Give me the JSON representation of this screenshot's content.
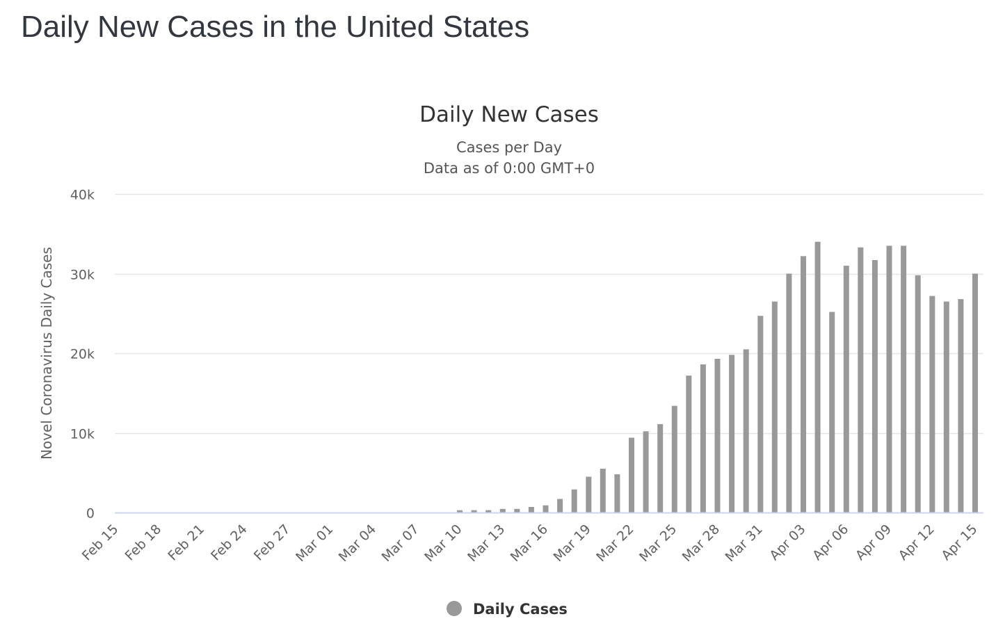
{
  "page": {
    "title": "Daily New Cases in the United States"
  },
  "chart_data": {
    "type": "bar",
    "title": "Daily New Cases",
    "subtitle_lines": [
      "Cases per Day",
      "Data as of 0:00 GMT+0"
    ],
    "xlabel": "",
    "ylabel": "Novel Coronavirus Daily Cases",
    "ylim": [
      0,
      40000
    ],
    "yticks": [
      0,
      10000,
      20000,
      30000,
      40000
    ],
    "ytick_labels": [
      "0",
      "10k",
      "20k",
      "30k",
      "40k"
    ],
    "grid": true,
    "legend": {
      "position": "bottom-center",
      "entries": [
        "Daily Cases"
      ]
    },
    "bar_color": "#999999",
    "categories": [
      "Feb 15",
      "Feb 16",
      "Feb 17",
      "Feb 18",
      "Feb 19",
      "Feb 20",
      "Feb 21",
      "Feb 22",
      "Feb 23",
      "Feb 24",
      "Feb 25",
      "Feb 26",
      "Feb 27",
      "Feb 28",
      "Feb 29",
      "Mar 01",
      "Mar 02",
      "Mar 03",
      "Mar 04",
      "Mar 05",
      "Mar 06",
      "Mar 07",
      "Mar 08",
      "Mar 09",
      "Mar 10",
      "Mar 11",
      "Mar 12",
      "Mar 13",
      "Mar 14",
      "Mar 15",
      "Mar 16",
      "Mar 17",
      "Mar 18",
      "Mar 19",
      "Mar 20",
      "Mar 21",
      "Mar 22",
      "Mar 23",
      "Mar 24",
      "Mar 25",
      "Mar 26",
      "Mar 27",
      "Mar 28",
      "Mar 29",
      "Mar 30",
      "Mar 31",
      "Apr 01",
      "Apr 02",
      "Apr 03",
      "Apr 04",
      "Apr 05",
      "Apr 06",
      "Apr 07",
      "Apr 08",
      "Apr 09",
      "Apr 10",
      "Apr 11",
      "Apr 12",
      "Apr 13",
      "Apr 14",
      "Apr 15"
    ],
    "xtick_labels": [
      "Feb 15",
      "Feb 18",
      "Feb 21",
      "Feb 24",
      "Feb 27",
      "Mar 01",
      "Mar 04",
      "Mar 07",
      "Mar 10",
      "Mar 13",
      "Mar 16",
      "Mar 19",
      "Mar 22",
      "Mar 25",
      "Mar 28",
      "Mar 31",
      "Apr 03",
      "Apr 06",
      "Apr 09",
      "Apr 12",
      "Apr 15"
    ],
    "series": [
      {
        "name": "Daily Cases",
        "values": [
          0,
          0,
          0,
          0,
          0,
          0,
          0,
          0,
          0,
          0,
          0,
          0,
          0,
          0,
          0,
          0,
          0,
          0,
          0,
          0,
          0,
          0,
          0,
          0,
          290,
          290,
          300,
          450,
          450,
          700,
          900,
          1700,
          2900,
          4500,
          5500,
          4800,
          9400,
          10200,
          11100,
          13400,
          17200,
          18600,
          19300,
          19800,
          20500,
          24700,
          26500,
          30000,
          32200,
          34000,
          25200,
          31000,
          33300,
          31700,
          33500,
          33500,
          29800,
          27200,
          26500,
          26800,
          30000
        ]
      }
    ]
  }
}
